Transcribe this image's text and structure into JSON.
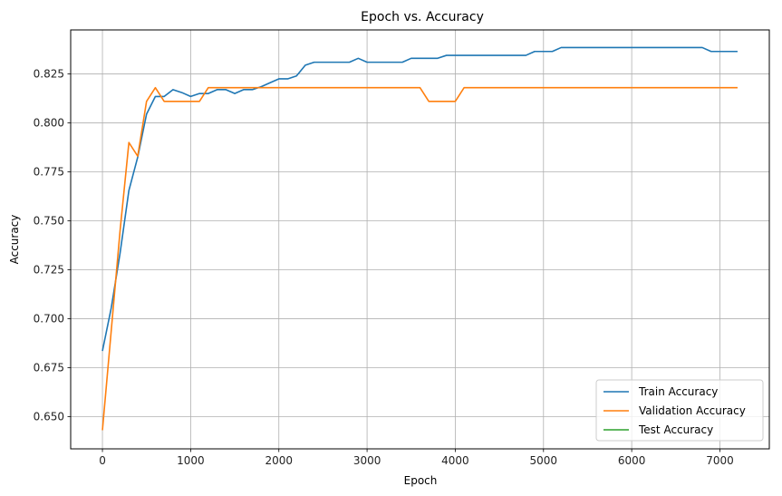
{
  "chart_data": {
    "type": "line",
    "title": "Epoch vs. Accuracy",
    "xlabel": "Epoch",
    "ylabel": "Accuracy",
    "xlim": [
      -360,
      7560
    ],
    "ylim": [
      0.6335,
      0.8475
    ],
    "xticks": [
      0,
      1000,
      2000,
      3000,
      4000,
      5000,
      6000,
      7000
    ],
    "xtick_labels": [
      "0",
      "1000",
      "2000",
      "3000",
      "4000",
      "5000",
      "6000",
      "7000"
    ],
    "yticks": [
      0.65,
      0.675,
      0.7,
      0.725,
      0.75,
      0.775,
      0.8,
      0.825
    ],
    "ytick_labels": [
      "0.650",
      "0.675",
      "0.700",
      "0.725",
      "0.750",
      "0.775",
      "0.800",
      "0.825"
    ],
    "grid": true,
    "legend_position": "lower-right",
    "series": [
      {
        "name": "Train Accuracy",
        "color": "#1f77b4",
        "x": [
          0,
          100,
          200,
          300,
          400,
          500,
          600,
          700,
          800,
          900,
          1000,
          1100,
          1200,
          1300,
          1400,
          1500,
          1600,
          1700,
          1800,
          1900,
          2000,
          2100,
          2200,
          2300,
          2400,
          2500,
          2600,
          2700,
          2800,
          2900,
          3000,
          3100,
          3200,
          3300,
          3400,
          3500,
          3600,
          3700,
          3800,
          3900,
          4000,
          4100,
          4200,
          4300,
          4400,
          4500,
          4600,
          4700,
          4800,
          4900,
          5000,
          5100,
          5200,
          5300,
          5400,
          5500,
          5600,
          5700,
          5800,
          5900,
          6000,
          6100,
          6200,
          6300,
          6400,
          6500,
          6600,
          6700,
          6800,
          6900,
          7000,
          7100,
          7200
        ],
        "values": [
          0.6835,
          0.7055,
          0.7335,
          0.7655,
          0.7825,
          0.8045,
          0.8135,
          0.8135,
          0.817,
          0.8155,
          0.8135,
          0.815,
          0.815,
          0.817,
          0.817,
          0.815,
          0.817,
          0.817,
          0.8185,
          0.8205,
          0.8225,
          0.8225,
          0.824,
          0.8295,
          0.831,
          0.831,
          0.831,
          0.831,
          0.831,
          0.833,
          0.831,
          0.831,
          0.831,
          0.831,
          0.831,
          0.833,
          0.833,
          0.833,
          0.833,
          0.8345,
          0.8345,
          0.8345,
          0.8345,
          0.8345,
          0.8345,
          0.8345,
          0.8345,
          0.8345,
          0.8345,
          0.8365,
          0.8365,
          0.8365,
          0.8385,
          0.8385,
          0.8385,
          0.8385,
          0.8385,
          0.8385,
          0.8385,
          0.8385,
          0.8385,
          0.8385,
          0.8385,
          0.8385,
          0.8385,
          0.8385,
          0.8385,
          0.8385,
          0.8385,
          0.8365,
          0.8365,
          0.8365,
          0.8365
        ]
      },
      {
        "name": "Validation Accuracy",
        "color": "#ff7f0e",
        "x": [
          0,
          100,
          200,
          300,
          400,
          500,
          600,
          700,
          800,
          900,
          1000,
          1100,
          1200,
          1300,
          1400,
          1500,
          1600,
          1700,
          1800,
          1900,
          2000,
          2100,
          2200,
          2300,
          2400,
          2500,
          2600,
          2700,
          2800,
          2900,
          3000,
          3100,
          3200,
          3300,
          3400,
          3500,
          3600,
          3700,
          3800,
          3900,
          4000,
          4100,
          4200,
          4300,
          4400,
          4500,
          4600,
          4700,
          4800,
          4900,
          5000,
          5100,
          5200,
          5300,
          5400,
          5500,
          5600,
          5700,
          5800,
          5900,
          6000,
          6100,
          6200,
          6300,
          6400,
          6500,
          6600,
          6700,
          6800,
          6900,
          7000,
          7100,
          7200
        ],
        "values": [
          0.643,
          0.694,
          0.745,
          0.79,
          0.783,
          0.811,
          0.818,
          0.811,
          0.811,
          0.811,
          0.811,
          0.811,
          0.818,
          0.818,
          0.818,
          0.818,
          0.818,
          0.818,
          0.818,
          0.818,
          0.818,
          0.818,
          0.818,
          0.818,
          0.818,
          0.818,
          0.818,
          0.818,
          0.818,
          0.818,
          0.818,
          0.818,
          0.818,
          0.818,
          0.818,
          0.818,
          0.818,
          0.811,
          0.811,
          0.811,
          0.811,
          0.818,
          0.818,
          0.818,
          0.818,
          0.818,
          0.818,
          0.818,
          0.818,
          0.818,
          0.818,
          0.818,
          0.818,
          0.818,
          0.818,
          0.818,
          0.818,
          0.818,
          0.818,
          0.818,
          0.818,
          0.818,
          0.818,
          0.818,
          0.818,
          0.818,
          0.818,
          0.818,
          0.818,
          0.818,
          0.818,
          0.818,
          0.818
        ]
      },
      {
        "name": "Test Accuracy",
        "color": "#2ca02c",
        "x": [],
        "values": []
      }
    ]
  }
}
